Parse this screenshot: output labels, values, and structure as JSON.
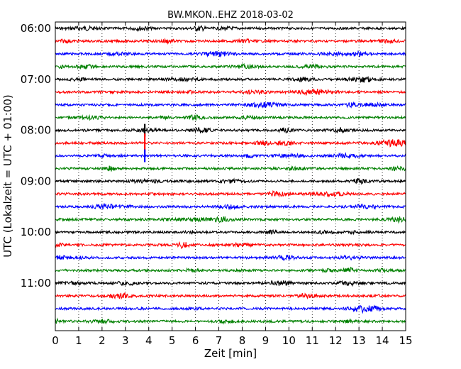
{
  "chart_data": {
    "type": "line",
    "subtype": "helicorder",
    "title": "BW.MKON..EHZ 2018-03-02",
    "xlabel": "Zeit  [min]",
    "ylabel": "UTC (Lokalzeit = UTC + 01:00)",
    "xlim": [
      0,
      15
    ],
    "x_ticks": [
      "0",
      "1",
      "2",
      "3",
      "4",
      "5",
      "6",
      "7",
      "8",
      "9",
      "10",
      "11",
      "12",
      "13",
      "14",
      "15"
    ],
    "y_tick_labels": [
      "06:00",
      "07:00",
      "08:00",
      "09:00",
      "10:00",
      "11:00"
    ],
    "trace_start_times": [
      "06:00",
      "06:15",
      "06:30",
      "06:45",
      "07:00",
      "07:15",
      "07:30",
      "07:45",
      "08:00",
      "08:15",
      "08:30",
      "08:45",
      "09:00",
      "09:15",
      "09:30",
      "09:45",
      "10:00",
      "10:15",
      "10:30",
      "10:45",
      "11:00",
      "11:15",
      "11:30",
      "11:45"
    ],
    "trace_colors": [
      "#000000",
      "#ff0000",
      "#0000ff",
      "#008000"
    ],
    "grid": "vertical dotted at each minute",
    "events": [
      {
        "trace_index": 8,
        "minute": 3.83,
        "amplitude_traces": 1.0
      },
      {
        "trace_index": 9,
        "minute": 3.83,
        "amplitude_traces": 1.5
      },
      {
        "trace_index": 10,
        "minute": 3.83,
        "amplitude_traces": 1.0
      },
      {
        "trace_index": 10,
        "minute": 3.3,
        "amplitude_traces": 0.15
      },
      {
        "trace_index": 21,
        "minute": 13.5,
        "amplitude_traces": 0.2
      }
    ]
  }
}
